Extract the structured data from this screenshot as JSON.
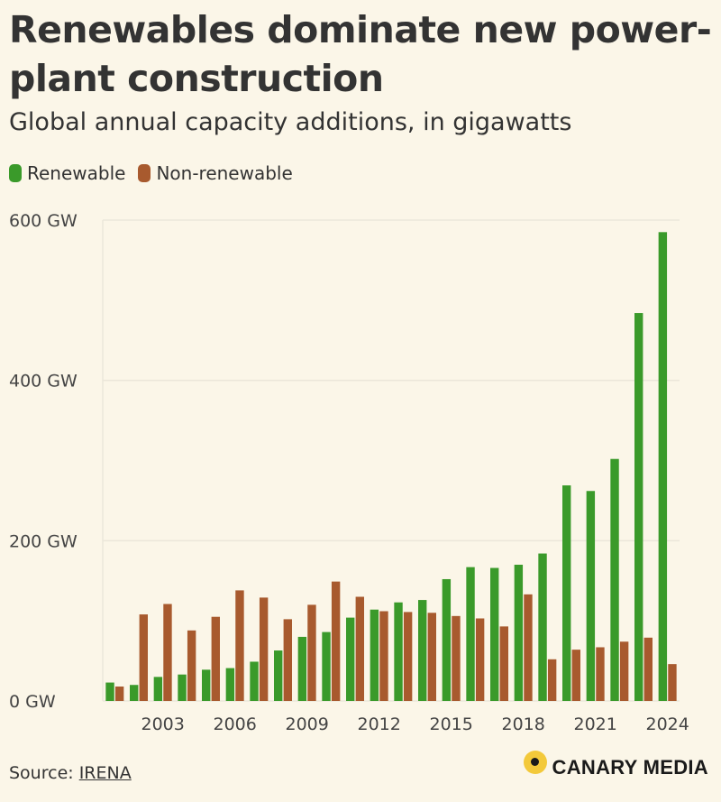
{
  "header": {
    "title": "Renewables dominate new power-plant construction",
    "subtitle": "Global annual capacity additions, in gigawatts"
  },
  "legend": {
    "renewable_label": "Renewable",
    "nonrenewable_label": "Non-renewable"
  },
  "colors": {
    "renewable": "#3a9a2a",
    "nonrenewable": "#a85a2e",
    "grid": "#ebe7da",
    "axis_text": "#444444",
    "background": "#fbf6e8"
  },
  "footer": {
    "source_prefix": "Source: ",
    "source_link": "IRENA",
    "brand": "CANARY MEDIA"
  },
  "chart_data": {
    "type": "bar",
    "title": "Renewables dominate new power-plant construction",
    "subtitle": "Global annual capacity additions, in gigawatts",
    "xlabel": "",
    "ylabel": "",
    "ylim": [
      0,
      600
    ],
    "yticks": [
      0,
      200,
      400,
      600
    ],
    "ytick_labels": [
      "0 GW",
      "200 GW",
      "400 GW",
      "600 GW"
    ],
    "categories": [
      "2001",
      "2002",
      "2003",
      "2004",
      "2005",
      "2006",
      "2007",
      "2008",
      "2009",
      "2010",
      "2011",
      "2012",
      "2013",
      "2014",
      "2015",
      "2016",
      "2017",
      "2018",
      "2019",
      "2020",
      "2021",
      "2022",
      "2023",
      "2024"
    ],
    "xtick_labels": [
      "2003",
      "2006",
      "2009",
      "2012",
      "2015",
      "2018",
      "2021",
      "2024"
    ],
    "grid": true,
    "legend_position": "top-left",
    "series": [
      {
        "name": "Renewable",
        "values": [
          23,
          20,
          30,
          33,
          39,
          41,
          49,
          63,
          80,
          86,
          104,
          114,
          123,
          126,
          152,
          167,
          166,
          170,
          184,
          269,
          262,
          302,
          484,
          585
        ]
      },
      {
        "name": "Non-renewable",
        "values": [
          18,
          108,
          121,
          88,
          105,
          138,
          129,
          102,
          120,
          149,
          130,
          112,
          111,
          110,
          106,
          103,
          93,
          133,
          52,
          64,
          67,
          74,
          79,
          46
        ]
      }
    ]
  }
}
